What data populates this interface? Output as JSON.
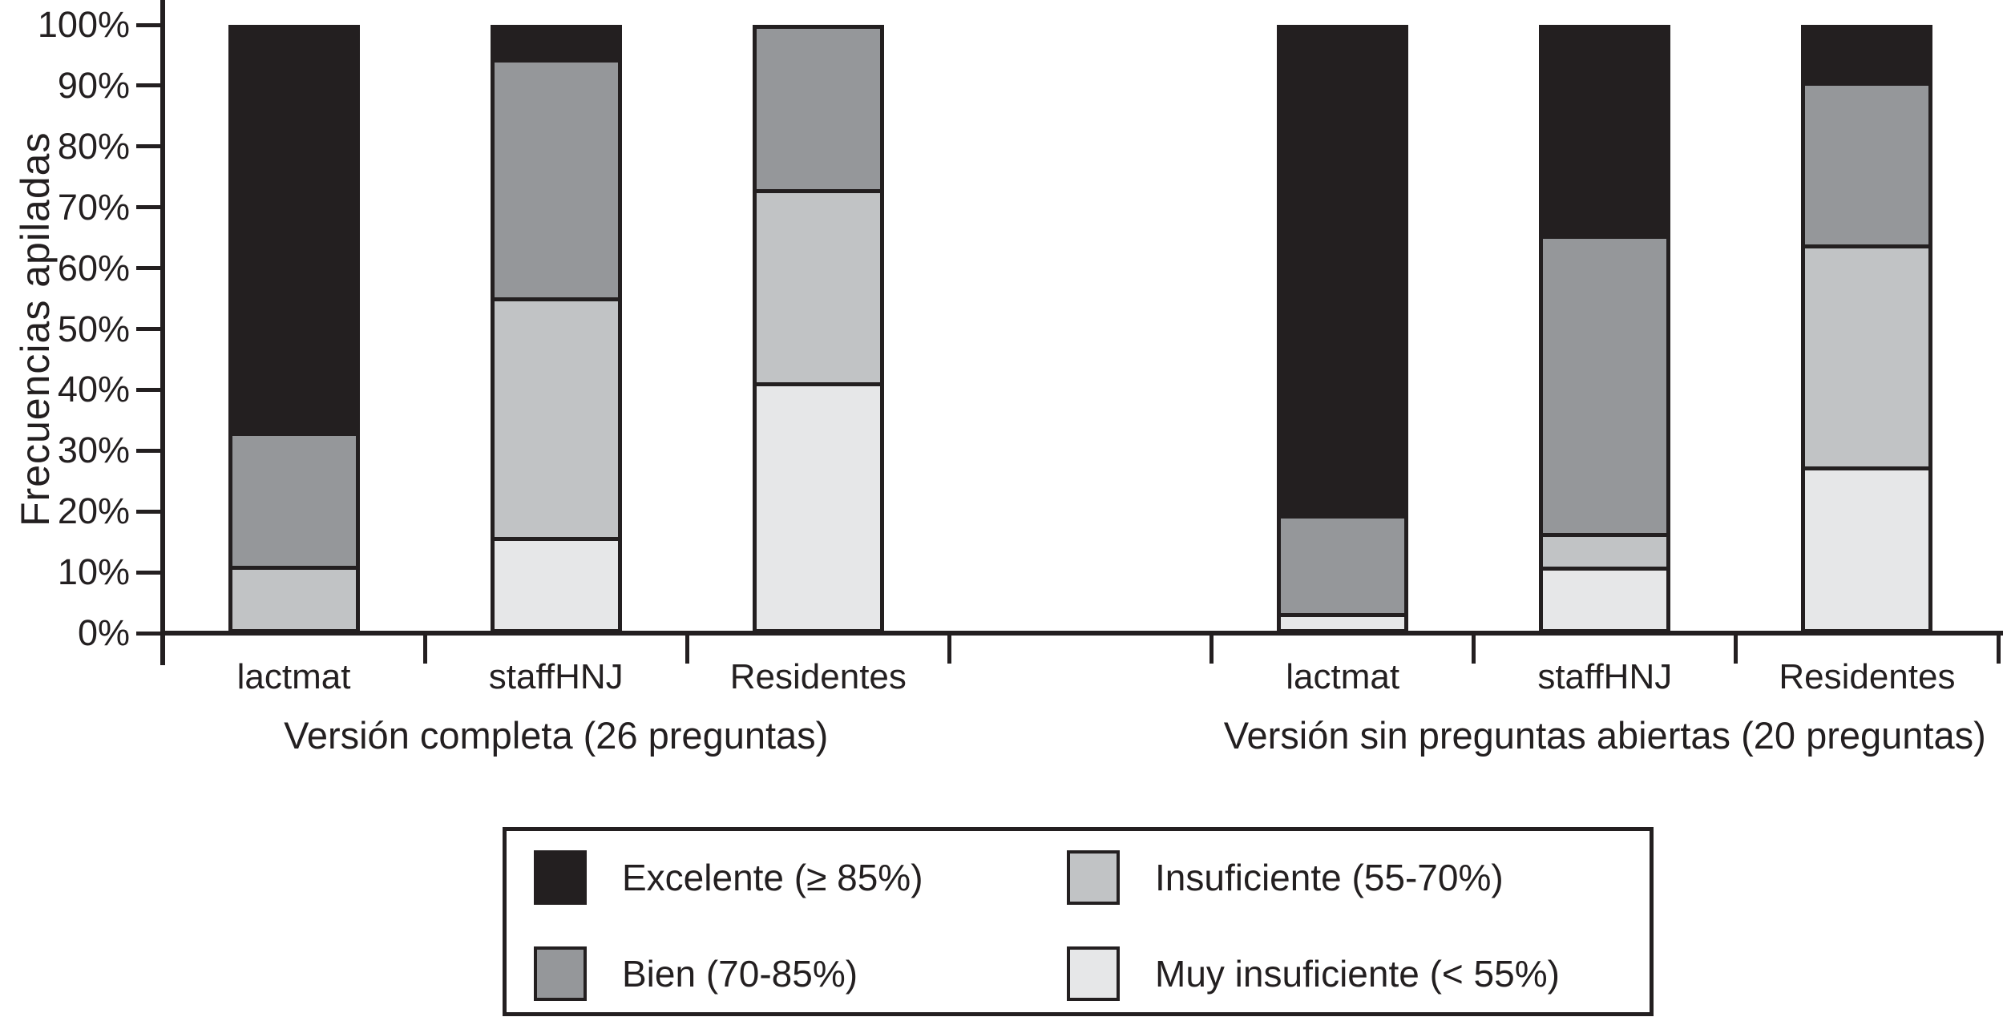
{
  "chart_data": {
    "type": "bar",
    "variant": "stacked-100-percent",
    "title": "",
    "ylabel": "Frecuencias apiladas",
    "xlabel": "",
    "ylim": [
      0,
      100
    ],
    "y_tick_labels": [
      "0%",
      "10%",
      "20%",
      "30%",
      "40%",
      "50%",
      "60%",
      "70%",
      "80%",
      "90%",
      "100%"
    ],
    "grid": false,
    "legend_position": "bottom",
    "legend": [
      {
        "key": "excelente",
        "label": "Excelente (≥ 85%)",
        "color": "#231f20"
      },
      {
        "key": "bien",
        "label": "Bien (70-85%)",
        "color": "#95979a"
      },
      {
        "key": "insuficiente",
        "label": "Insuficiente (55-70%)",
        "color": "#c1c3c5"
      },
      {
        "key": "muy_insuficiente",
        "label": "Muy insuficiente (< 55%)",
        "color": "#e6e7e8"
      }
    ],
    "groups": [
      {
        "label": "Versión completa (26 preguntas)",
        "bars": [
          {
            "category": "lactmat",
            "values": {
              "excelente": 68,
              "bien": 22,
              "insuficiente": 10,
              "muy_insuficiente": 0
            }
          },
          {
            "category": "staffHNJ",
            "values": {
              "excelente": 5,
              "bien": 40,
              "insuficiente": 40,
              "muy_insuficiente": 15
            }
          },
          {
            "category": "Residentes",
            "values": {
              "excelente": 0,
              "bien": 27,
              "insuficiente": 32,
              "muy_insuficiente": 41
            }
          }
        ]
      },
      {
        "label": "Versión sin preguntas abiertas (20 preguntas)",
        "bars": [
          {
            "category": "lactmat",
            "values": {
              "excelente": 82,
              "bien": 16,
              "insuficiente": 0,
              "muy_insuficiente": 2
            }
          },
          {
            "category": "staffHNJ",
            "values": {
              "excelente": 35,
              "bien": 50,
              "insuficiente": 5,
              "muy_insuficiente": 10
            }
          },
          {
            "category": "Residentes",
            "values": {
              "excelente": 9,
              "bien": 27,
              "insuficiente": 37,
              "muy_insuficiente": 27
            }
          }
        ]
      }
    ]
  }
}
